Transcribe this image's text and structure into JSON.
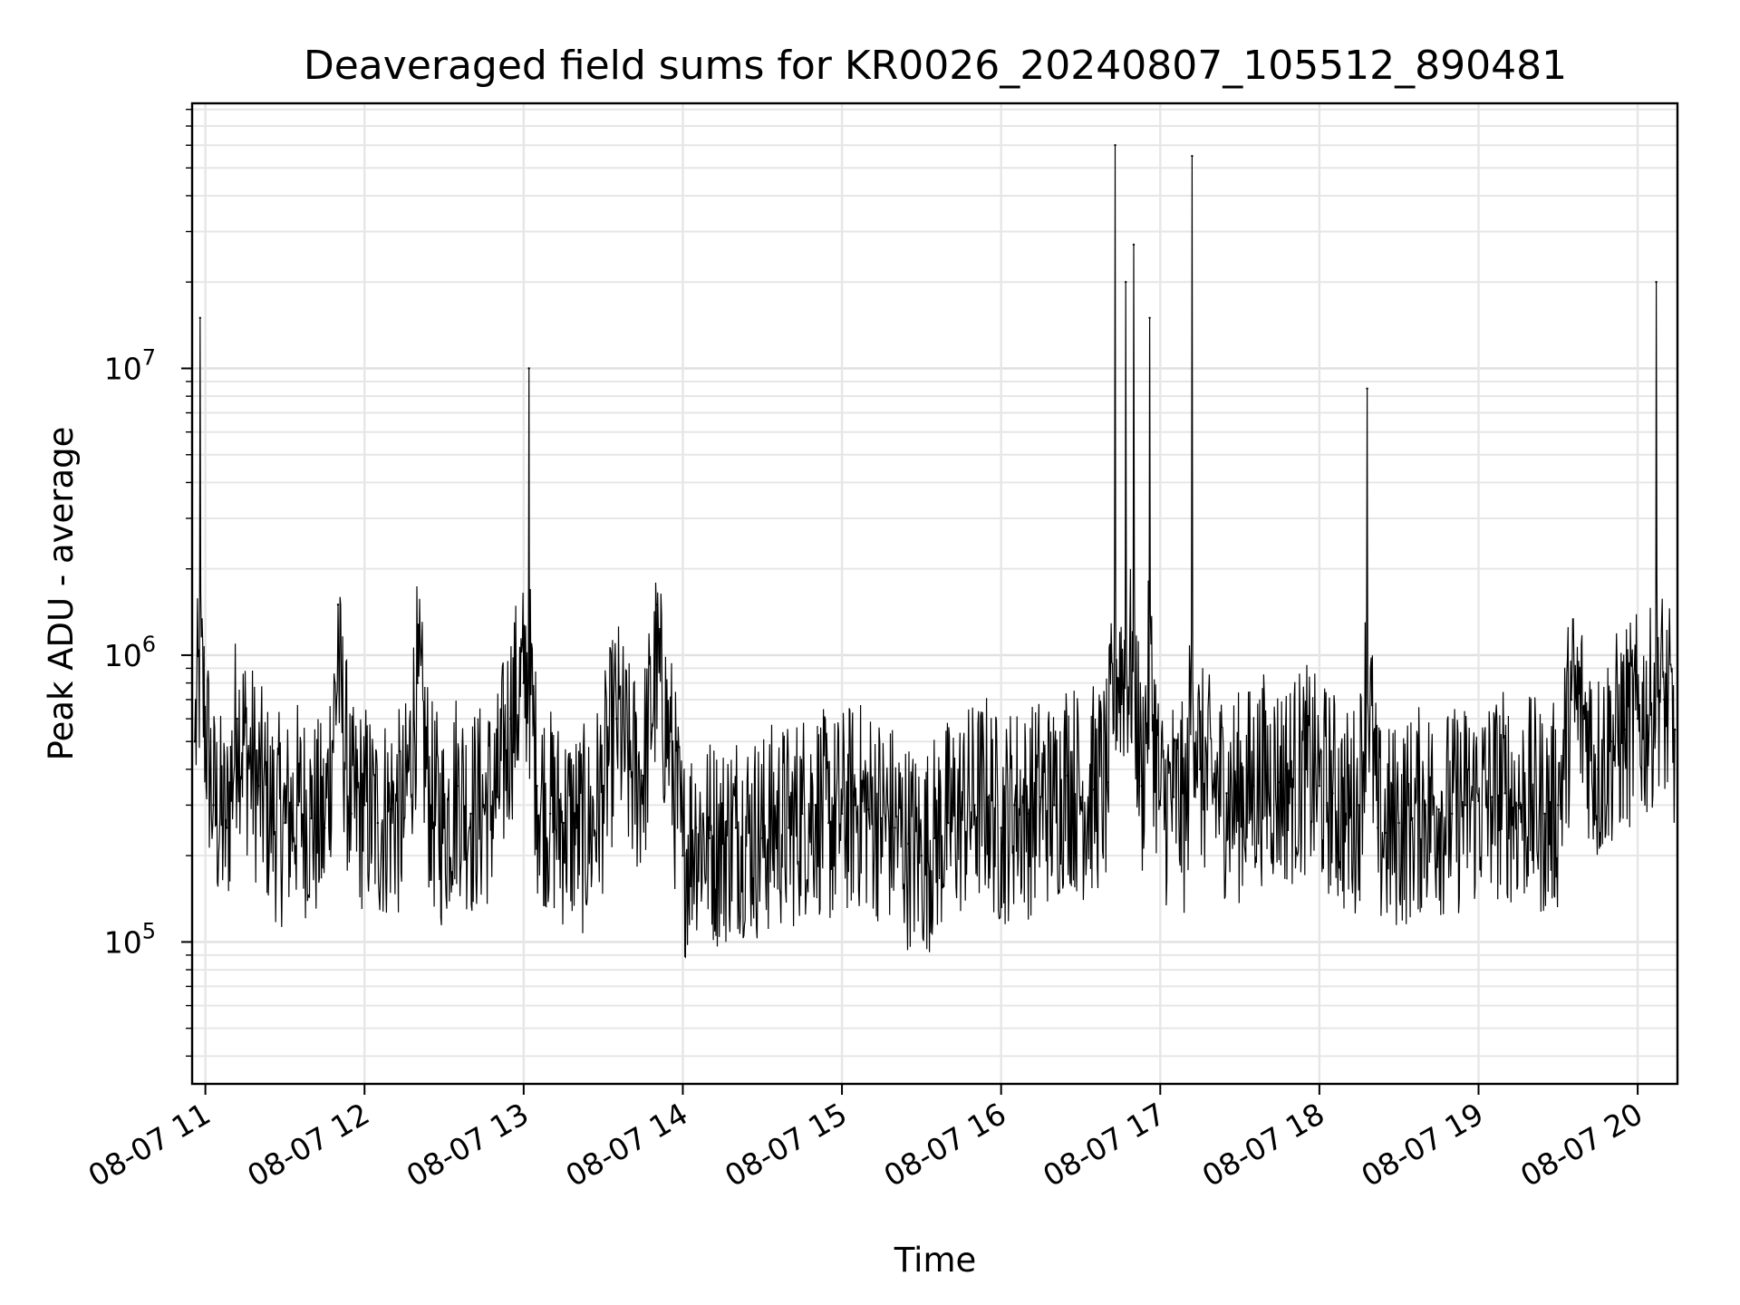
{
  "chart_data": {
    "type": "line",
    "title": "Deaveraged field sums for KR0026_20240807_105512_890481",
    "xlabel": "Time",
    "ylabel": "Peak ADU - average",
    "yscale": "log",
    "grid": true,
    "line_color": "#000000",
    "xlim": [
      "08-07 10:55",
      "08-07 20:15"
    ],
    "ylim": [
      32000,
      84000000
    ],
    "x_tick_labels": [
      "08-07 11",
      "08-07 12",
      "08-07 13",
      "08-07 14",
      "08-07 15",
      "08-07 16",
      "08-07 17",
      "08-07 18",
      "08-07 19",
      "08-07 20"
    ],
    "y_tick_labels": [
      {
        "base": "10",
        "exp": "5",
        "value": 100000
      },
      {
        "base": "10",
        "exp": "6",
        "value": 1000000
      },
      {
        "base": "10",
        "exp": "7",
        "value": 10000000
      }
    ],
    "series": [
      {
        "x": [
          "08-07 10:56",
          "08-07 10:58",
          "08-07 11:03",
          "08-07 11:08",
          "08-07 11:12",
          "08-07 11:16",
          "08-07 11:20",
          "08-07 11:25",
          "08-07 11:30",
          "08-07 11:35",
          "08-07 11:40",
          "08-07 11:45",
          "08-07 11:50",
          "08-07 11:55",
          "08-07 12:00",
          "08-07 12:05",
          "08-07 12:10",
          "08-07 12:15",
          "08-07 12:20",
          "08-07 12:25",
          "08-07 12:30",
          "08-07 12:35",
          "08-07 12:40",
          "08-07 12:45",
          "08-07 12:50",
          "08-07 12:55",
          "08-07 13:00",
          "08-07 13:02",
          "08-07 13:05",
          "08-07 13:10",
          "08-07 13:15",
          "08-07 13:20",
          "08-07 13:25",
          "08-07 13:30",
          "08-07 13:35",
          "08-07 13:40",
          "08-07 13:45",
          "08-07 13:50",
          "08-07 13:55",
          "08-07 14:00",
          "08-07 14:05",
          "08-07 14:10",
          "08-07 14:15",
          "08-07 14:20",
          "08-07 14:25",
          "08-07 14:30",
          "08-07 14:35",
          "08-07 14:40",
          "08-07 14:45",
          "08-07 14:50",
          "08-07 14:55",
          "08-07 15:00",
          "08-07 15:05",
          "08-07 15:10",
          "08-07 15:15",
          "08-07 15:20",
          "08-07 15:25",
          "08-07 15:30",
          "08-07 15:35",
          "08-07 15:40",
          "08-07 15:45",
          "08-07 15:50",
          "08-07 15:55",
          "08-07 16:00",
          "08-07 16:05",
          "08-07 16:10",
          "08-07 16:15",
          "08-07 16:20",
          "08-07 16:25",
          "08-07 16:30",
          "08-07 16:35",
          "08-07 16:40",
          "08-07 16:43",
          "08-07 16:47",
          "08-07 16:50",
          "08-07 16:53",
          "08-07 16:56",
          "08-07 17:00",
          "08-07 17:05",
          "08-07 17:10",
          "08-07 17:12",
          "08-07 17:15",
          "08-07 17:20",
          "08-07 17:25",
          "08-07 17:30",
          "08-07 17:35",
          "08-07 17:40",
          "08-07 17:45",
          "08-07 17:50",
          "08-07 17:55",
          "08-07 18:00",
          "08-07 18:05",
          "08-07 18:10",
          "08-07 18:15",
          "08-07 18:18",
          "08-07 18:22",
          "08-07 18:25",
          "08-07 18:30",
          "08-07 18:35",
          "08-07 18:40",
          "08-07 18:45",
          "08-07 18:50",
          "08-07 18:55",
          "08-07 19:00",
          "08-07 19:05",
          "08-07 19:10",
          "08-07 19:15",
          "08-07 19:20",
          "08-07 19:25",
          "08-07 19:30",
          "08-07 19:35",
          "08-07 19:40",
          "08-07 19:45",
          "08-07 19:50",
          "08-07 19:55",
          "08-07 20:00",
          "08-07 20:05",
          "08-07 20:07",
          "08-07 20:10",
          "08-07 20:14"
        ],
        "y": [
          500000,
          15000000,
          300000,
          250000,
          600000,
          450000,
          350000,
          280000,
          260000,
          300000,
          270000,
          250000,
          1500000,
          280000,
          300000,
          260000,
          290000,
          270000,
          800000,
          300000,
          250000,
          350000,
          280000,
          300000,
          320000,
          600000,
          800000,
          10000000,
          350000,
          280000,
          260000,
          250000,
          240000,
          350000,
          600000,
          400000,
          380000,
          1500000,
          500000,
          200000,
          250000,
          230000,
          220000,
          250000,
          240000,
          230000,
          260000,
          250000,
          280000,
          300000,
          260000,
          280000,
          300000,
          290000,
          270000,
          250000,
          220000,
          200000,
          230000,
          260000,
          280000,
          300000,
          320000,
          250000,
          300000,
          280000,
          320000,
          300000,
          380000,
          320000,
          340000,
          360000,
          60000000,
          20000000,
          27000000,
          350000,
          15000000,
          300000,
          320000,
          280000,
          55000000,
          400000,
          350000,
          330000,
          320000,
          350000,
          380000,
          360000,
          370000,
          400000,
          350000,
          330000,
          280000,
          300000,
          8500000,
          250000,
          240000,
          260000,
          270000,
          300000,
          290000,
          280000,
          300000,
          310000,
          320000,
          330000,
          300000,
          310000,
          280000,
          300000,
          700000,
          600000,
          400000,
          500000,
          550000,
          600000,
          620000,
          20000000,
          700000,
          550000
        ]
      }
    ]
  }
}
